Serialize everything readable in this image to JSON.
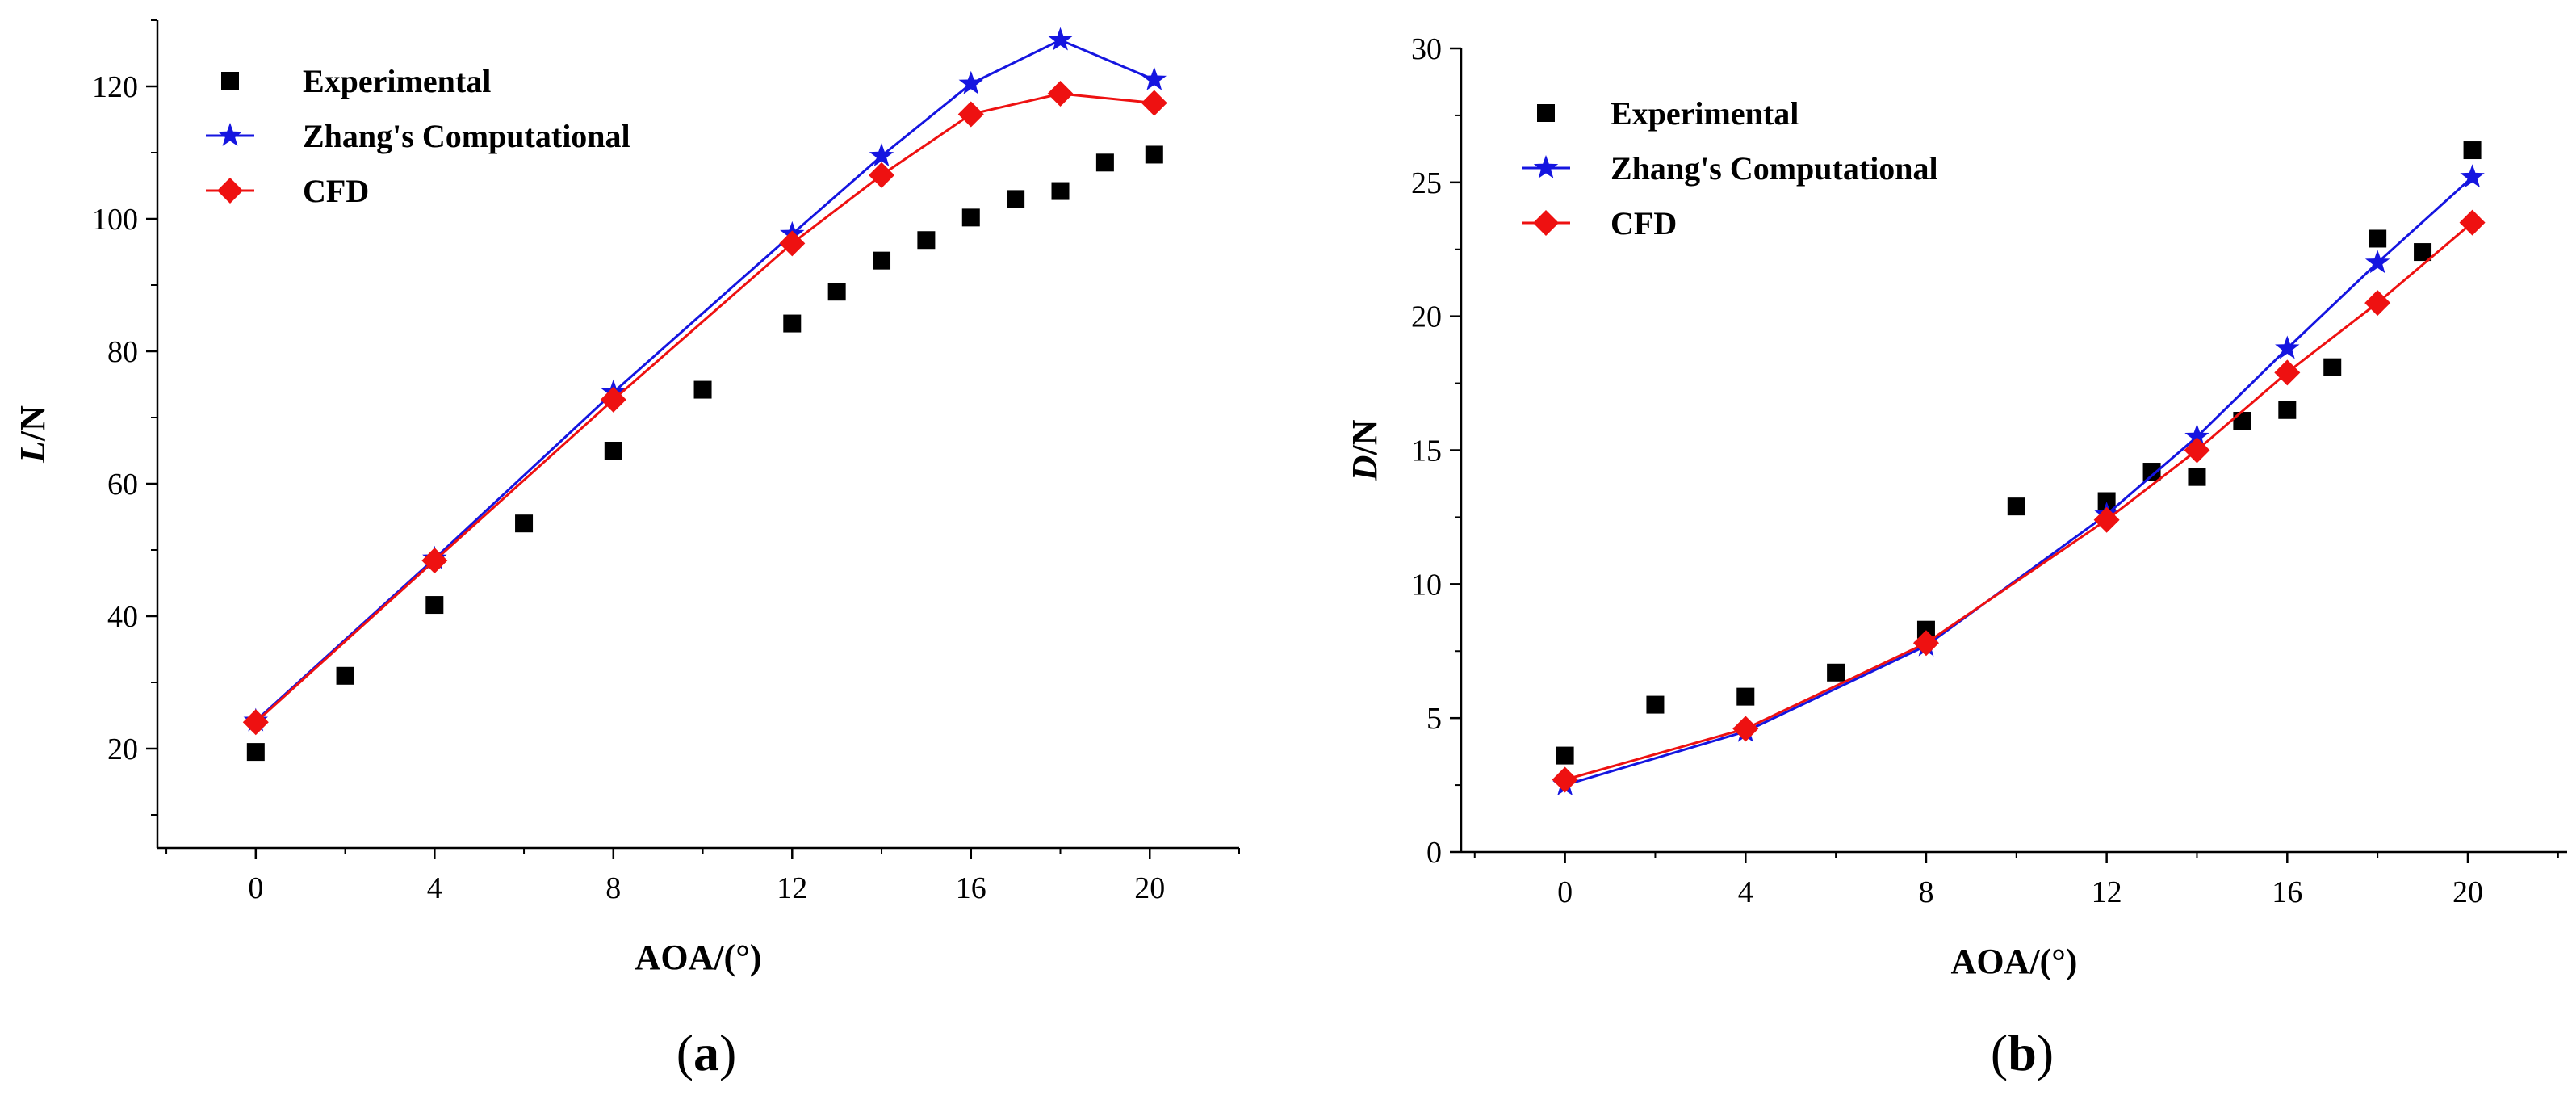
{
  "chart_data": [
    {
      "type": "scatter",
      "panel_label": {
        "open": "(",
        "letter": "a",
        "close": ")"
      },
      "xlabel": "AOA/(°)",
      "ylabel": {
        "italic": "L",
        "rest": "/N"
      },
      "xlim": [
        -2.2,
        22.0
      ],
      "ylim": [
        5,
        130
      ],
      "xticks": [
        0,
        4,
        8,
        12,
        16,
        20
      ],
      "yticks": [
        20,
        40,
        60,
        80,
        100,
        120
      ],
      "legend_position": "top-left",
      "series": [
        {
          "name": "Experimental",
          "marker": "square",
          "line": false,
          "color": "#000000",
          "points": [
            [
              0,
              19.5
            ],
            [
              2,
              31
            ],
            [
              4,
              41.7
            ],
            [
              6,
              54
            ],
            [
              8,
              65
            ],
            [
              10,
              74.2
            ],
            [
              12,
              84.2
            ],
            [
              13,
              89
            ],
            [
              14,
              93.7
            ],
            [
              15,
              96.8
            ],
            [
              16,
              100.2
            ],
            [
              17,
              103
            ],
            [
              18,
              104.2
            ],
            [
              19,
              108.5
            ],
            [
              20.1,
              109.7
            ]
          ]
        },
        {
          "name": "Zhang's Computational",
          "marker": "star",
          "line": true,
          "color": "#1515e0",
          "points": [
            [
              0,
              24.2
            ],
            [
              4,
              48.7
            ],
            [
              8,
              73.8
            ],
            [
              12,
              97.7
            ],
            [
              14,
              109.5
            ],
            [
              16,
              120.4
            ],
            [
              18,
              127
            ],
            [
              20.1,
              121
            ]
          ]
        },
        {
          "name": "CFD",
          "marker": "diamond",
          "line": true,
          "color": "#ee1111",
          "points": [
            [
              0,
              24
            ],
            [
              4,
              48.4
            ],
            [
              8,
              72.7
            ],
            [
              12,
              96.3
            ],
            [
              14,
              106.6
            ],
            [
              16,
              115.8
            ],
            [
              18,
              118.9
            ],
            [
              20.1,
              117.5
            ]
          ]
        }
      ]
    },
    {
      "type": "scatter",
      "panel_label": {
        "open": "(",
        "letter": "b",
        "close": ")"
      },
      "xlabel": "AOA/(°)",
      "ylabel": {
        "italic": "D",
        "rest": "/N"
      },
      "xlim": [
        -2.3,
        22.2
      ],
      "ylim": [
        0,
        30
      ],
      "xticks": [
        0,
        4,
        8,
        12,
        16,
        20
      ],
      "yticks": [
        0,
        5,
        10,
        15,
        20,
        25,
        30
      ],
      "legend_position": "top-left",
      "series": [
        {
          "name": "Experimental",
          "marker": "square",
          "line": false,
          "color": "#000000",
          "points": [
            [
              0,
              3.6
            ],
            [
              2,
              5.5
            ],
            [
              4,
              5.8
            ],
            [
              6,
              6.7
            ],
            [
              8,
              8.3
            ],
            [
              10,
              12.9
            ],
            [
              12,
              13.1
            ],
            [
              13,
              14.2
            ],
            [
              14,
              14
            ],
            [
              15,
              16.1
            ],
            [
              16,
              16.5
            ],
            [
              17,
              18.1
            ],
            [
              18,
              22.9
            ],
            [
              19,
              22.4
            ],
            [
              20.1,
              26.2
            ]
          ]
        },
        {
          "name": "Zhang's Computational",
          "marker": "star",
          "line": true,
          "color": "#1515e0",
          "points": [
            [
              0,
              2.5
            ],
            [
              4,
              4.5
            ],
            [
              8,
              7.7
            ],
            [
              12,
              12.6
            ],
            [
              14,
              15.5
            ],
            [
              16,
              18.8
            ],
            [
              18,
              22
            ],
            [
              20.1,
              25.2
            ]
          ]
        },
        {
          "name": "CFD",
          "marker": "diamond",
          "line": true,
          "color": "#ee1111",
          "points": [
            [
              0,
              2.7
            ],
            [
              4,
              4.6
            ],
            [
              8,
              7.8
            ],
            [
              12,
              12.4
            ],
            [
              14,
              15
            ],
            [
              16,
              17.9
            ],
            [
              18,
              20.5
            ],
            [
              20.1,
              23.5
            ]
          ]
        }
      ]
    }
  ]
}
